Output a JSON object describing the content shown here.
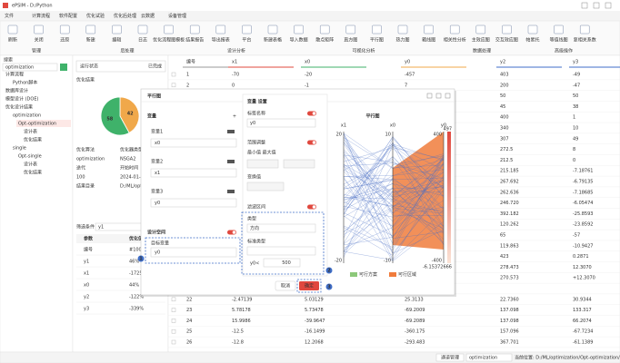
{
  "window": {
    "title": "ePSIM - D:/Python"
  },
  "menu": [
    "文件",
    "计算流程",
    "软件配置",
    "优化试验",
    "优化后处理",
    "云数据",
    "设备管理"
  ],
  "toolbar": {
    "items": [
      "刷新",
      "关闭",
      "还原",
      "新建",
      "编辑",
      "日志",
      "优化流程图模板",
      "结果报告",
      "导出报表",
      "平台",
      "新建表格",
      "导入数据",
      "散点矩阵",
      "直方图",
      "平行图",
      "热力图",
      "箱线图",
      "相关性分析",
      "主效应图",
      "交互效应图",
      "帕累托",
      "等值线图",
      "复相关系数"
    ],
    "groups": [
      "管理",
      "后处理",
      "设计分析",
      "可视化分析",
      "数据处理",
      "高级操作"
    ]
  },
  "left": {
    "header": "搜索",
    "search": "optimization",
    "tree": [
      "计算流程",
      "Python脚本",
      "数据库设计",
      "模型设计 (DOE)",
      "优化设计结果",
      "optimization",
      "Opt-optimization",
      "设计表",
      "优化结果",
      "single",
      "Opt-single",
      "设计表",
      "优化结果"
    ]
  },
  "status": {
    "header": "运行状态",
    "state": "已完成",
    "label": "优化结果"
  },
  "pie": {
    "values": [
      42,
      58
    ],
    "colors": [
      "#f0a84a",
      "#3fb26a"
    ]
  },
  "info": [
    [
      "优化算法",
      "优化器类型"
    ],
    [
      "optimization",
      "NSGA2"
    ],
    [
      "迭代",
      "开始时间"
    ],
    [
      "100",
      "2024-01-20"
    ],
    [
      "结果目录",
      "D:/ML/optimization"
    ]
  ],
  "params": {
    "filter_label": "筛选条件",
    "filter": "y1",
    "headers": [
      "参数",
      "优化值"
    ],
    "rows": [
      [
        "编号",
        "#1001"
      ],
      [
        "y1",
        "46%"
      ],
      [
        "x1",
        "-1725"
      ],
      [
        "x0",
        "44%"
      ],
      [
        "y2",
        "-122%"
      ],
      [
        "y3",
        "-339%"
      ]
    ]
  },
  "table": {
    "headers": [
      "编号",
      "x1",
      "x0",
      "y0",
      "y2",
      "y3"
    ],
    "rows": [
      [
        "1",
        "-70",
        "-20",
        "-457",
        "403",
        "-49"
      ],
      [
        "2",
        "0",
        "-1",
        "7",
        "200",
        "-47"
      ]
    ],
    "right_rows": [
      [
        "50",
        "50"
      ],
      [
        "45",
        "38"
      ],
      [
        "400",
        "1"
      ],
      [
        "340",
        "10"
      ],
      [
        "307",
        "49"
      ],
      [
        "272.5",
        "8"
      ],
      [
        "212.5",
        "0"
      ],
      [
        "215.185",
        "-7.18761"
      ],
      [
        "267.692",
        "-6.79135"
      ],
      [
        "262.636",
        "-7.18685"
      ],
      [
        "246.720",
        "-6.05474"
      ],
      [
        "392.182",
        "-25.8593"
      ],
      [
        "120.262",
        "-23.8592"
      ],
      [
        "65",
        "-57"
      ],
      [
        "119.863",
        "-10.9427"
      ],
      [
        "423",
        "0.2871"
      ],
      [
        "278.473",
        "12.3070"
      ],
      [
        "270.573",
        "+12.3070"
      ]
    ],
    "bottom_rows": [
      [
        "22",
        "-2.47139",
        "5.03129",
        "25.3133",
        "22.7360",
        "30.9344"
      ],
      [
        "23",
        "5.78178",
        "5.73478",
        "-69.2009",
        "137.098",
        "133.317"
      ],
      [
        "24",
        "15.9986",
        "-39.9647",
        "-69.2089",
        "137.098",
        "66.2074"
      ],
      [
        "25",
        "-12.5",
        "-16.1499",
        "-360.175",
        "157.096",
        "-67.7234"
      ],
      [
        "26",
        "-12.8",
        "12.2068",
        "-293.483",
        "367.701",
        "-61.1389"
      ]
    ]
  },
  "dialog": {
    "title": "平行图",
    "vars_header": "变量",
    "add": "+",
    "vars": [
      [
        "变量1",
        "x0"
      ],
      [
        "变量2",
        "x1"
      ],
      [
        "变量3",
        "y0"
      ]
    ],
    "design_space": "设计空间",
    "target_label": "目标变量",
    "target": "y0",
    "settings": {
      "header": "变量 设置",
      "label_name": "标签名称",
      "label_value": "y0",
      "range": "范围调整",
      "minmax": "最小值 最大值",
      "transform": "变换值",
      "filter": "滤波区间",
      "kind": "类型",
      "direction": "方向",
      "std_kind": "标准类型",
      "cond": "y0<",
      "cond_value": "500"
    },
    "cancel": "取消",
    "ok": "确定",
    "callouts": [
      "1",
      "2",
      "3"
    ],
    "chart": {
      "title": "平行图",
      "axes": [
        "x1",
        "x0",
        "y0"
      ],
      "top_ticks": [
        "20",
        "10",
        "400"
      ],
      "bottom_ticks": [
        "-20",
        "-10",
        "-400"
      ],
      "colorbar_max": "497",
      "colorbar_min": "-6.15372666",
      "legend": [
        "可行方案",
        "可行区域"
      ]
    }
  },
  "footer": {
    "manage": "通道管理",
    "path": "当前位置: D:/ML/optimization/Opt-optimization/设计表",
    "tab1": "optimization",
    "tab2": "Opt-optimization / 设计表"
  }
}
